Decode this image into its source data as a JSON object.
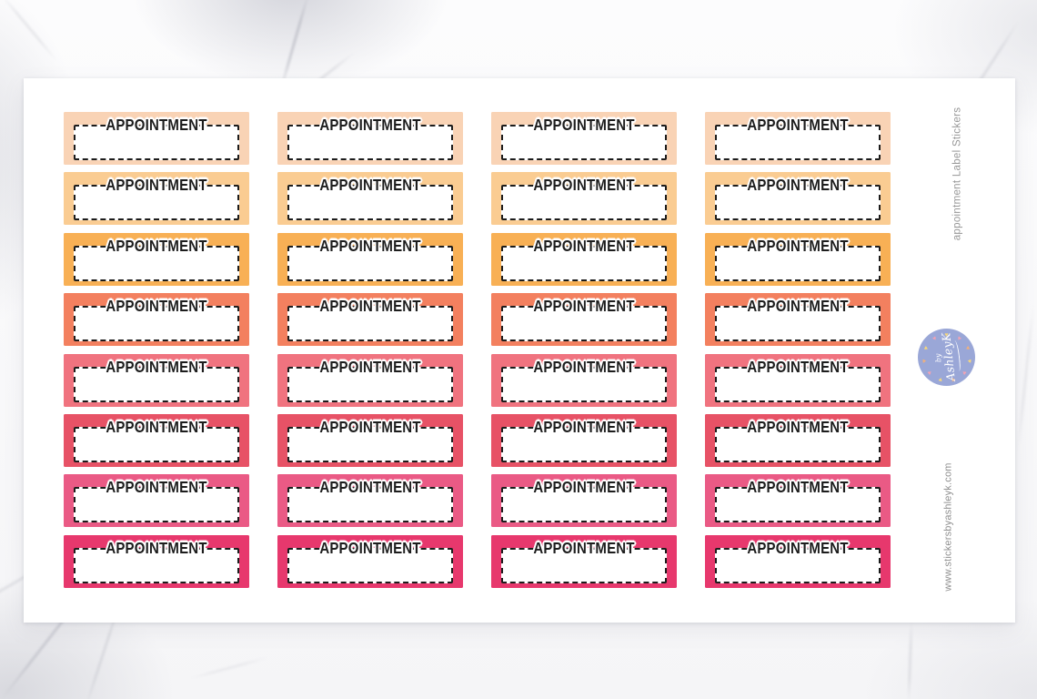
{
  "product": {
    "side_title": "appointment Label Stickers",
    "website_url": "www.stickersbyashleyk.com"
  },
  "sticker_sheet": {
    "sticker_label": "APPOINTMENT",
    "columns": 4,
    "rows": 8,
    "row_colors": [
      "#F9D3B5",
      "#FACC92",
      "#F8B055",
      "#F3805F",
      "#F0737F",
      "#E75266",
      "#EA5A85",
      "#E7386D"
    ]
  },
  "logo": {
    "prefix": "by",
    "name": "AshleyK",
    "circle_color": "#9AA7D7",
    "heart_count": 11,
    "heart_colors": [
      "#F5D77D",
      "#F0A3B5",
      "#EFB07E"
    ]
  }
}
